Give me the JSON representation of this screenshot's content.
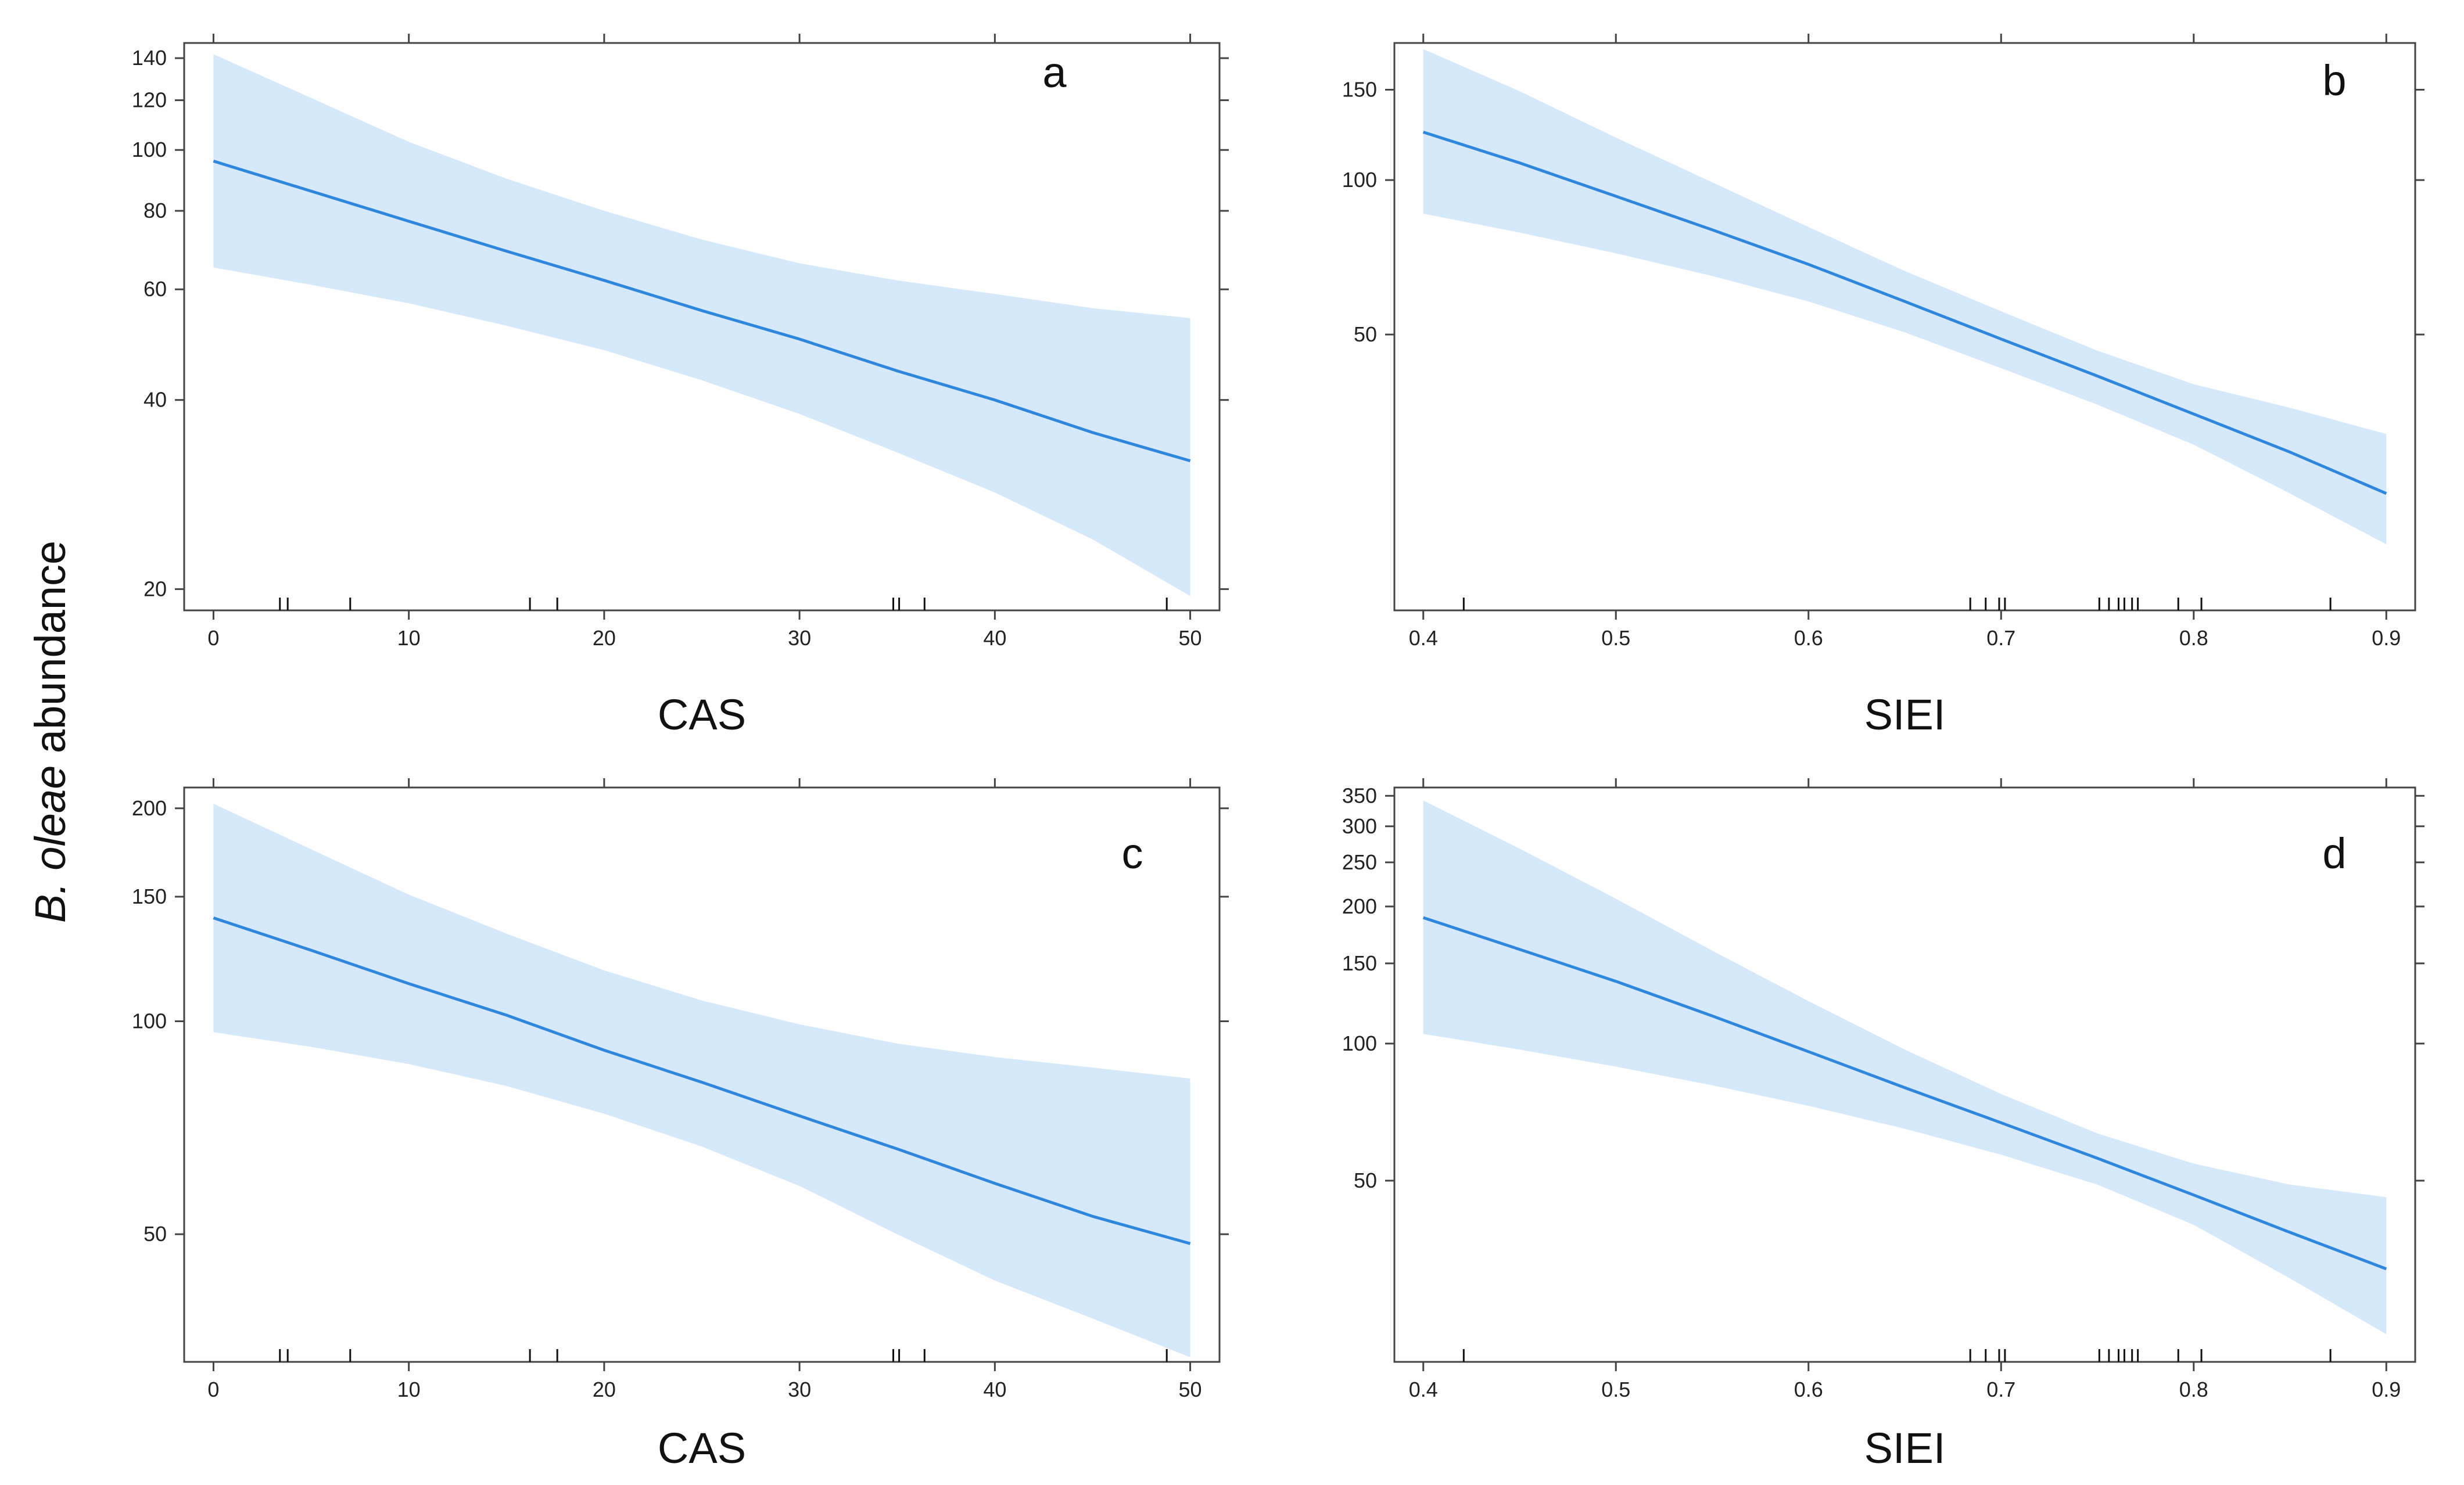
{
  "ylabel": {
    "italic": "B. oleae",
    "rest": " abundance"
  },
  "colors": {
    "band": "#d6e9fb",
    "line": "#2f86dd",
    "frame": "#444444"
  },
  "chart_data": [
    {
      "type": "line",
      "panel": "a",
      "xlabel": "CAS",
      "ylabel": "B. oleae abundance",
      "yscale": "log",
      "xlim": [
        -1.5,
        51.5
      ],
      "ylim": [
        18.5,
        148
      ],
      "xticks": [
        "0",
        "10",
        "20",
        "30",
        "40",
        "50"
      ],
      "yticks": [
        "20",
        "40",
        "60",
        "80",
        "100",
        "120",
        "140"
      ],
      "rug": [
        3.4,
        3.8,
        7.0,
        16.2,
        17.6,
        34.8,
        35.1,
        36.4,
        48.8
      ],
      "series": [
        {
          "x": [
            0,
            5,
            10,
            15,
            20,
            25,
            30,
            35,
            40,
            45,
            50
          ],
          "fit": [
            96,
            86,
            77,
            69,
            62,
            55.5,
            50,
            44.5,
            40,
            35.5,
            32
          ],
          "lower": [
            65,
            61,
            57,
            52.5,
            48,
            43,
            38,
            33,
            28.5,
            24,
            19.5
          ],
          "upper": [
            142,
            121,
            103,
            90,
            80,
            72,
            66,
            62,
            59,
            56,
            54
          ]
        }
      ]
    },
    {
      "type": "line",
      "panel": "b",
      "xlabel": "SIEI",
      "ylabel": "B. oleae abundance",
      "yscale": "log",
      "xlim": [
        0.385,
        0.915
      ],
      "ylim": [
        14.5,
        185
      ],
      "xticks": [
        "0.4",
        "0.5",
        "0.6",
        "0.7",
        "0.8",
        "0.9"
      ],
      "yticks": [
        "50",
        "100",
        "150"
      ],
      "rug": [
        0.421,
        0.684,
        0.692,
        0.699,
        0.702,
        0.751,
        0.756,
        0.761,
        0.764,
        0.768,
        0.771,
        0.792,
        0.804,
        0.871
      ],
      "series": [
        {
          "x": [
            0.4,
            0.45,
            0.5,
            0.55,
            0.6,
            0.65,
            0.7,
            0.75,
            0.8,
            0.85,
            0.9
          ],
          "fit": [
            124,
            108,
            93,
            80,
            68.5,
            58,
            49,
            41.5,
            35,
            29.5,
            24.5
          ],
          "lower": [
            86,
            79,
            72,
            65,
            58,
            50.5,
            43,
            36.5,
            30.5,
            24.5,
            19.5
          ],
          "upper": [
            180,
            149,
            121,
            99,
            81,
            66.5,
            55.5,
            46.5,
            40,
            36,
            32
          ]
        }
      ]
    },
    {
      "type": "line",
      "panel": "c",
      "xlabel": "CAS",
      "ylabel": "B. oleae abundance",
      "yscale": "log",
      "xlim": [
        -1.5,
        51.5
      ],
      "ylim": [
        33,
        214
      ],
      "xticks": [
        "0",
        "10",
        "20",
        "30",
        "40",
        "50"
      ],
      "yticks": [
        "50",
        "100",
        "150",
        "200"
      ],
      "rug": [
        3.4,
        3.8,
        7.0,
        16.2,
        17.6,
        34.8,
        35.1,
        36.4,
        48.8
      ],
      "series": [
        {
          "x": [
            0,
            5,
            10,
            15,
            20,
            25,
            30,
            35,
            40,
            45,
            50
          ],
          "fit": [
            140,
            126,
            113,
            102,
            91,
            82,
            73.5,
            66,
            59,
            53,
            48.5
          ],
          "lower": [
            96.5,
            92,
            87,
            81,
            74,
            66.5,
            58.5,
            50,
            43,
            38,
            33.5
          ],
          "upper": [
            203,
            175,
            151,
            133,
            118,
            107,
            99,
            93,
            89,
            86,
            83
          ]
        }
      ]
    },
    {
      "type": "line",
      "panel": "d",
      "xlabel": "SIEI",
      "ylabel": "B. oleae abundance",
      "yscale": "log",
      "xlim": [
        0.385,
        0.915
      ],
      "ylim": [
        20,
        365
      ],
      "xticks": [
        "0.4",
        "0.5",
        "0.6",
        "0.7",
        "0.8",
        "0.9"
      ],
      "yticks": [
        "50",
        "100",
        "150",
        "200",
        "250",
        "300",
        "350"
      ],
      "rug": [
        0.421,
        0.684,
        0.692,
        0.699,
        0.702,
        0.751,
        0.756,
        0.761,
        0.764,
        0.768,
        0.771,
        0.792,
        0.804,
        0.871
      ],
      "series": [
        {
          "x": [
            0.4,
            0.45,
            0.5,
            0.55,
            0.6,
            0.65,
            0.7,
            0.75,
            0.8,
            0.85,
            0.9
          ],
          "fit": [
            189,
            161,
            137,
            115,
            96,
            80,
            67,
            56,
            46.5,
            38.5,
            32
          ],
          "lower": [
            105,
            97,
            89,
            81,
            73,
            65,
            57,
            49,
            40,
            30.5,
            23
          ],
          "upper": [
            342,
            268,
            208,
            160,
            124,
            97,
            77.5,
            63.5,
            54.5,
            49,
            46
          ]
        }
      ]
    }
  ]
}
